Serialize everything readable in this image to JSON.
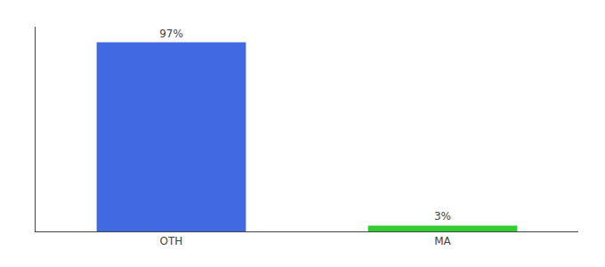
{
  "chart_data": {
    "type": "bar",
    "categories": [
      "OTH",
      "MA"
    ],
    "values": [
      97,
      3
    ],
    "value_labels": [
      "97%",
      "3%"
    ],
    "data_labels": true,
    "colors": [
      "#4169e1",
      "#33cc33"
    ],
    "ylim": [
      0,
      105
    ],
    "grid": false,
    "tick_labels": "x"
  }
}
